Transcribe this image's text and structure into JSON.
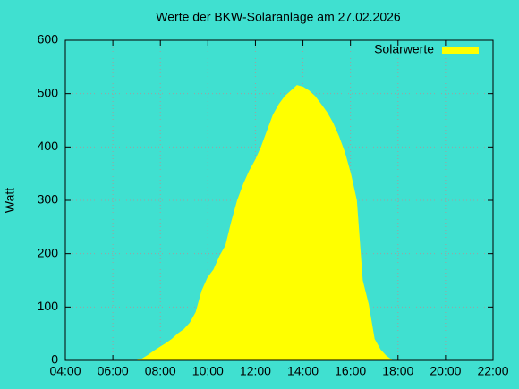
{
  "chart_data": {
    "type": "area",
    "title": "Werte der BKW-Solaranlage am 27.02.2026",
    "y_label": "Watt",
    "x": [
      "07:00",
      "07:15",
      "07:30",
      "07:45",
      "08:00",
      "08:15",
      "08:30",
      "08:45",
      "09:00",
      "09:15",
      "09:30",
      "09:45",
      "10:00",
      "10:15",
      "10:30",
      "10:45",
      "11:00",
      "11:15",
      "11:30",
      "11:45",
      "12:00",
      "12:15",
      "12:30",
      "12:45",
      "13:00",
      "13:15",
      "13:30",
      "13:45",
      "14:00",
      "14:15",
      "14:30",
      "14:45",
      "15:00",
      "15:15",
      "15:30",
      "15:45",
      "16:00",
      "16:15",
      "16:30",
      "16:45",
      "17:00",
      "17:15",
      "17:30",
      "17:45"
    ],
    "series": [
      {
        "name": "Solarwerte",
        "color": "#ffff00",
        "values": [
          0,
          3,
          10,
          18,
          25,
          32,
          40,
          50,
          58,
          70,
          90,
          130,
          155,
          170,
          195,
          215,
          260,
          300,
          330,
          355,
          375,
          400,
          430,
          460,
          480,
          495,
          505,
          515,
          512,
          505,
          495,
          480,
          465,
          445,
          420,
          390,
          350,
          300,
          150,
          105,
          40,
          20,
          8,
          0
        ]
      }
    ],
    "xlim": [
      "04:00",
      "22:00"
    ],
    "xticks": [
      "04:00",
      "06:00",
      "08:00",
      "10:00",
      "12:00",
      "14:00",
      "16:00",
      "18:00",
      "20:00",
      "22:00"
    ],
    "ylim": [
      0,
      600
    ],
    "yticks": [
      0,
      100,
      200,
      300,
      400,
      500,
      600
    ],
    "grid": true,
    "legend": "top-right"
  }
}
